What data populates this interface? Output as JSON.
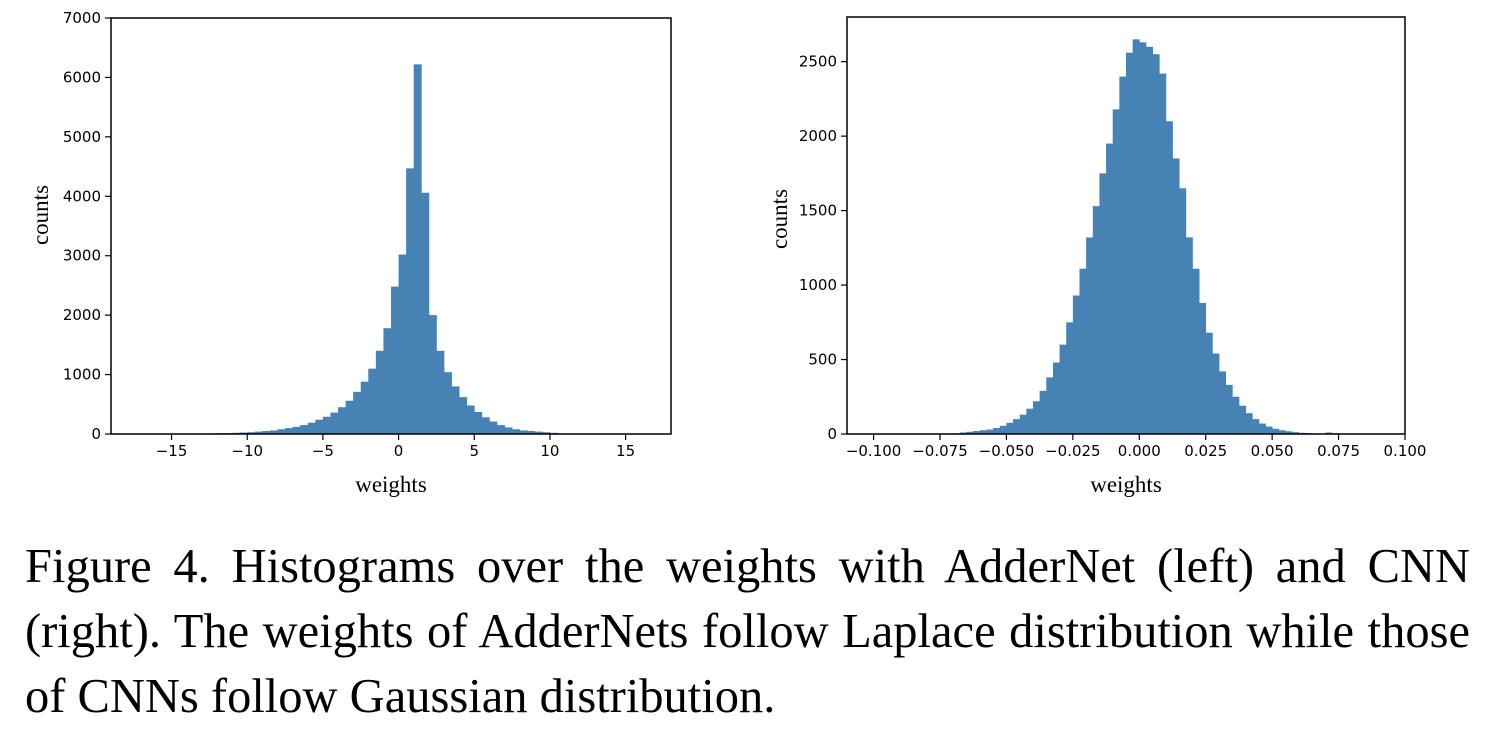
{
  "chart_data": [
    {
      "type": "bar",
      "panel": "left",
      "xlabel": "weights",
      "ylabel": "counts",
      "xlim": [
        -19,
        18
      ],
      "ylim": [
        0,
        7000
      ],
      "xticks": [
        -15,
        -10,
        -5,
        0,
        5,
        10,
        15
      ],
      "yticks": [
        0,
        1000,
        2000,
        3000,
        4000,
        5000,
        6000,
        7000
      ],
      "xtick_labels": [
        "−15",
        "−10",
        "−5",
        "0",
        "5",
        "10",
        "15"
      ],
      "ytick_labels": [
        "0",
        "1000",
        "2000",
        "3000",
        "4000",
        "5000",
        "6000",
        "7000"
      ],
      "bin_width": 0.5,
      "bin_starts": [
        -13,
        -12.5,
        -12,
        -11.5,
        -11,
        -10.5,
        -10,
        -9.5,
        -9,
        -8.5,
        -8,
        -7.5,
        -7,
        -6.5,
        -6,
        -5.5,
        -5,
        -4.5,
        -4,
        -3.5,
        -3,
        -2.5,
        -2,
        -1.5,
        -1,
        -0.5,
        0,
        0.5,
        1,
        1.5,
        2,
        2.5,
        3,
        3.5,
        4,
        4.5,
        5,
        5.5,
        6,
        6.5,
        7,
        7.5,
        8,
        8.5,
        9,
        9.5,
        10,
        10.5
      ],
      "values": [
        10,
        10,
        15,
        15,
        20,
        25,
        30,
        40,
        50,
        60,
        80,
        100,
        120,
        150,
        190,
        240,
        290,
        360,
        450,
        560,
        710,
        880,
        1100,
        1400,
        1780,
        2480,
        3020,
        4470,
        6220,
        4060,
        2000,
        1400,
        1040,
        800,
        620,
        480,
        370,
        280,
        210,
        150,
        110,
        80,
        60,
        50,
        40,
        30,
        20,
        10
      ],
      "color": "#4682b4"
    },
    {
      "type": "bar",
      "panel": "right",
      "xlabel": "weights",
      "ylabel": "counts",
      "xlim": [
        -0.11,
        0.1
      ],
      "ylim": [
        0,
        2800
      ],
      "xticks": [
        -0.1,
        -0.075,
        -0.05,
        -0.025,
        0.0,
        0.025,
        0.05,
        0.075,
        0.1
      ],
      "yticks": [
        0,
        500,
        1000,
        1500,
        2000,
        2500
      ],
      "xtick_labels": [
        "−0.100",
        "−0.075",
        "−0.050",
        "−0.025",
        "0.000",
        "0.025",
        "0.050",
        "0.075",
        "0.100"
      ],
      "ytick_labels": [
        "0",
        "500",
        "1000",
        "1500",
        "2000",
        "2500"
      ],
      "bin_width": 0.0025,
      "bin_starts": [
        -0.07,
        -0.0675,
        -0.065,
        -0.0625,
        -0.06,
        -0.0575,
        -0.055,
        -0.0525,
        -0.05,
        -0.0475,
        -0.045,
        -0.0425,
        -0.04,
        -0.0375,
        -0.035,
        -0.0325,
        -0.03,
        -0.0275,
        -0.025,
        -0.0225,
        -0.02,
        -0.0175,
        -0.015,
        -0.0125,
        -0.01,
        -0.0075,
        -0.005,
        -0.0025,
        0,
        0.0025,
        0.005,
        0.0075,
        0.01,
        0.0125,
        0.015,
        0.0175,
        0.02,
        0.0225,
        0.025,
        0.0275,
        0.03,
        0.0325,
        0.035,
        0.0375,
        0.04,
        0.0425,
        0.045,
        0.0475,
        0.05,
        0.0525,
        0.055,
        0.0575,
        0.06,
        0.0625,
        0.065,
        0.0675,
        0.07,
        0.0725,
        0.075
      ],
      "values": [
        5,
        10,
        15,
        20,
        25,
        30,
        40,
        55,
        75,
        100,
        130,
        170,
        220,
        290,
        380,
        480,
        600,
        750,
        930,
        1110,
        1320,
        1530,
        1750,
        1950,
        2180,
        2400,
        2560,
        2650,
        2630,
        2600,
        2550,
        2420,
        2100,
        1850,
        1650,
        1320,
        1110,
        880,
        680,
        540,
        420,
        330,
        250,
        190,
        140,
        100,
        70,
        50,
        35,
        25,
        18,
        12,
        8,
        6,
        4,
        3,
        10,
        5,
        3
      ],
      "color": "#4682b4"
    }
  ],
  "caption": "Figure 4. Histograms over the weights with AdderNet (left) and CNN (right). The weights of AdderNets follow Laplace distribution while those of CNNs follow Gaussian distribution."
}
